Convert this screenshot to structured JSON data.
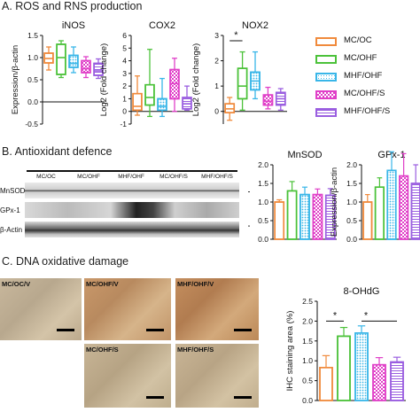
{
  "sections": {
    "a_title": "A. ROS and RNS production",
    "b_title": "B. Antioxidant defence",
    "c_title": "C. DNA oxidative damage"
  },
  "legend": [
    {
      "label": "MC/OC",
      "color": "#f08a3c",
      "fill": "none"
    },
    {
      "label": "MC/OHF",
      "color": "#4cc23a",
      "fill": "none"
    },
    {
      "label": "MHF/OHF",
      "color": "#39b6e8",
      "fill": "dots"
    },
    {
      "label": "MC/OHF/S",
      "color": "#e040c8",
      "fill": "checker"
    },
    {
      "label": "MHF/OHF/S",
      "color": "#9a5ee0",
      "fill": "hlines"
    }
  ],
  "blot": {
    "lane_headers": [
      "MC/OC",
      "MC/OHF",
      "MHF/OHF",
      "MC/OHF/S",
      "MHF/OHF/S"
    ],
    "rows": [
      "MnSOD",
      "GPx-1",
      "β-Actin"
    ]
  },
  "micrographs": [
    {
      "label": "MC/OC/V"
    },
    {
      "label": "MC/OHF/V"
    },
    {
      "label": "MHF/OHF/V"
    },
    {
      "label": "MC/OHF/S"
    },
    {
      "label": "MHF/OHF/S"
    }
  ],
  "chart_data": [
    {
      "type": "box",
      "title": "iNOS",
      "ylabel": "Expression/β-actin",
      "ylim": [
        -0.5,
        1.5
      ],
      "yticks": [
        "1.5",
        "1.0",
        "0.5",
        "0.0",
        "-0.5"
      ],
      "series": [
        {
          "group": "MC/OC",
          "min": 0.72,
          "q1": 0.88,
          "median": 0.98,
          "q3": 1.1,
          "max": 1.24
        },
        {
          "group": "MC/OHF",
          "min": 0.55,
          "q1": 0.62,
          "median": 1.0,
          "q3": 1.3,
          "max": 1.38
        },
        {
          "group": "MHF/OHF",
          "min": 0.66,
          "q1": 0.78,
          "median": 0.87,
          "q3": 1.05,
          "max": 1.24
        },
        {
          "group": "MC/OHF/S",
          "min": 0.55,
          "q1": 0.66,
          "median": 0.75,
          "q3": 0.93,
          "max": 1.02
        },
        {
          "group": "MHF/OHF/S",
          "min": 0.53,
          "q1": 0.6,
          "median": 0.7,
          "q3": 0.87,
          "max": 0.97
        }
      ]
    },
    {
      "type": "box",
      "title": "COX2",
      "ylabel": "Log2 (Fold change)",
      "ylim": [
        -1,
        6
      ],
      "yticks": [
        "6",
        "5",
        "4",
        "3",
        "2",
        "1",
        "0",
        "-1"
      ],
      "series": [
        {
          "group": "MC/OC",
          "min": -0.3,
          "q1": 0.1,
          "median": 0.4,
          "q3": 1.4,
          "max": 2.8
        },
        {
          "group": "MC/OHF",
          "min": -0.4,
          "q1": 0.5,
          "median": 1.1,
          "q3": 2.1,
          "max": 4.9
        },
        {
          "group": "MHF/OHF",
          "min": -0.4,
          "q1": 0.1,
          "median": 0.4,
          "q3": 1.0,
          "max": 2.6
        },
        {
          "group": "MC/OHF/S",
          "min": 0.0,
          "q1": 1.0,
          "median": 2.2,
          "q3": 3.3,
          "max": 4.2
        },
        {
          "group": "MHF/OHF/S",
          "min": 0.1,
          "q1": 0.2,
          "median": 0.6,
          "q3": 1.1,
          "max": 2.0
        }
      ]
    },
    {
      "type": "box",
      "title": "NOX2",
      "ylabel": "Log2 (Fold change)",
      "ylim": [
        -0.5,
        3
      ],
      "yticks": [
        "3",
        "2",
        "1",
        "0"
      ],
      "annotation": "*",
      "series": [
        {
          "group": "MC/OC",
          "min": -0.35,
          "q1": -0.05,
          "median": 0.1,
          "q3": 0.3,
          "max": 0.55
        },
        {
          "group": "MC/OHF",
          "min": 0.05,
          "q1": 0.5,
          "median": 1.0,
          "q3": 1.7,
          "max": 2.35
        },
        {
          "group": "MHF/OHF",
          "min": 0.5,
          "q1": 0.85,
          "median": 1.2,
          "q3": 1.55,
          "max": 2.35
        },
        {
          "group": "MC/OHF/S",
          "min": 0.1,
          "q1": 0.25,
          "median": 0.4,
          "q3": 0.65,
          "max": 0.95
        },
        {
          "group": "MHF/OHF/S",
          "min": 0.05,
          "q1": 0.25,
          "median": 0.5,
          "q3": 0.75,
          "max": 0.9
        }
      ]
    },
    {
      "type": "bar",
      "title": "MnSOD",
      "ylabel": "Expression/β-actin",
      "ylim": [
        0,
        2.0
      ],
      "yticks": [
        "2.0",
        "1.5",
        "1.0",
        "0.5",
        "0.0"
      ],
      "series": [
        {
          "group": "MC/OC",
          "value": 1.0,
          "err": 0.06
        },
        {
          "group": "MC/OHF",
          "value": 1.3,
          "err": 0.25
        },
        {
          "group": "MHF/OHF",
          "value": 1.2,
          "err": 0.2
        },
        {
          "group": "MC/OHF/S",
          "value": 1.2,
          "err": 0.15
        },
        {
          "group": "MHF/OHF/S",
          "value": 1.18,
          "err": 0.18
        }
      ]
    },
    {
      "type": "bar",
      "title": "GPx-1",
      "ylabel": "Expression/β-actin",
      "ylim": [
        0,
        2.0
      ],
      "yticks": [
        "2.0",
        "1.5",
        "1.0",
        "0.5",
        "0.0"
      ],
      "series": [
        {
          "group": "MC/OC",
          "value": 1.0,
          "err": 0.2
        },
        {
          "group": "MC/OHF",
          "value": 1.4,
          "err": 0.25
        },
        {
          "group": "MHF/OHF",
          "value": 1.85,
          "err": 0.5
        },
        {
          "group": "MC/OHF/S",
          "value": 1.7,
          "err": 0.6
        },
        {
          "group": "MHF/OHF/S",
          "value": 1.5,
          "err": 0.5
        }
      ]
    },
    {
      "type": "bar",
      "title": "8-OHdG",
      "ylabel": "IHC staining area (%)",
      "ylim": [
        0,
        2.5
      ],
      "yticks": [
        "2.5",
        "2.0",
        "1.5",
        "1.0",
        "0.5",
        "0.0"
      ],
      "annotations": [
        "*",
        "*"
      ],
      "series": [
        {
          "group": "MC/OC",
          "value": 0.83,
          "err": 0.3
        },
        {
          "group": "MC/OHF",
          "value": 1.62,
          "err": 0.22
        },
        {
          "group": "MHF/OHF",
          "value": 1.7,
          "err": 0.18
        },
        {
          "group": "MC/OHF/S",
          "value": 0.9,
          "err": 0.18
        },
        {
          "group": "MHF/OHF/S",
          "value": 0.97,
          "err": 0.12
        }
      ]
    }
  ]
}
